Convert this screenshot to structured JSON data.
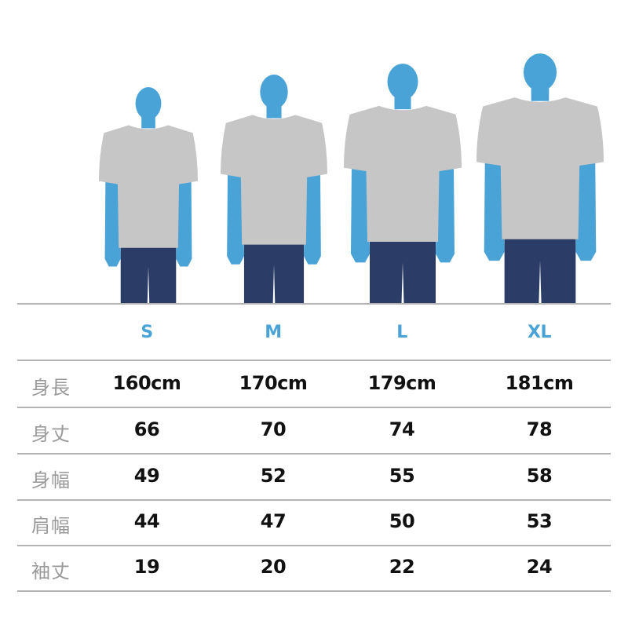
{
  "sizes": [
    "S",
    "M",
    "L",
    "XL"
  ],
  "rows": [
    {
      "label": "身長",
      "values": [
        "160cm",
        "170cm",
        "179cm",
        "181cm"
      ]
    },
    {
      "label": "身丈",
      "values": [
        "66",
        "70",
        "74",
        "78"
      ]
    },
    {
      "label": "身幅",
      "values": [
        "49",
        "52",
        "55",
        "58"
      ]
    },
    {
      "label": "肩幅",
      "values": [
        "44",
        "47",
        "50",
        "53"
      ]
    },
    {
      "label": "袖丈",
      "values": [
        "19",
        "20",
        "22",
        "24"
      ]
    }
  ],
  "colors": {
    "size_label": "#4aa3d6",
    "silhouette": "#4aa3d6",
    "shirt": "#c6c6c6",
    "jeans": "#2b3d66",
    "row_label": "#9a9a9a",
    "divider": "#b3b3b3"
  }
}
